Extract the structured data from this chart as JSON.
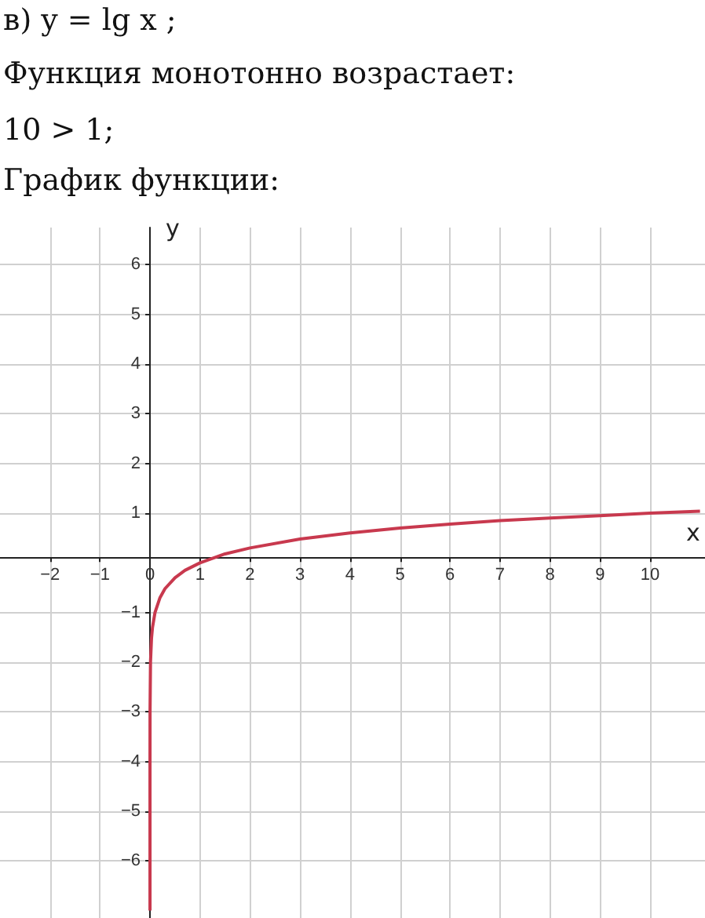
{
  "chart_data": {
    "type": "line",
    "title": "в) y = lg x ;",
    "annotations": [
      "Функция монотонно возрастает:",
      "10 > 1;",
      "График функции:"
    ],
    "xlabel": "x",
    "ylabel": "y",
    "series": [
      {
        "color": "#c8394e",
        "x": [
          1e-07,
          1e-06,
          1e-05,
          0.0001,
          0.001,
          0.01,
          0.03,
          0.05,
          0.1,
          0.2,
          0.3,
          0.5,
          0.7,
          1,
          1.5,
          2,
          3,
          4,
          5,
          6,
          7,
          8,
          9,
          10,
          11
        ],
        "values": [
          -7,
          -6,
          -5,
          -4,
          -3,
          -2,
          -1.52,
          -1.3,
          -1,
          -0.7,
          -0.52,
          -0.3,
          -0.15,
          0,
          0.18,
          0.3,
          0.48,
          0.6,
          0.7,
          0.78,
          0.85,
          0.9,
          0.95,
          1,
          1.04
        ]
      }
    ],
    "xlim": [
      -3,
      11.1
    ],
    "ylim": [
      -7.15,
      6.75
    ],
    "xticks": [
      -2,
      -1,
      0,
      1,
      2,
      3,
      4,
      5,
      6,
      7,
      8,
      9,
      10
    ],
    "yticks": [
      -6,
      -5,
      -4,
      -3,
      -2,
      -1,
      1,
      2,
      3,
      4,
      5,
      6
    ],
    "grid": true,
    "marker": "none",
    "line_style": "solid"
  }
}
